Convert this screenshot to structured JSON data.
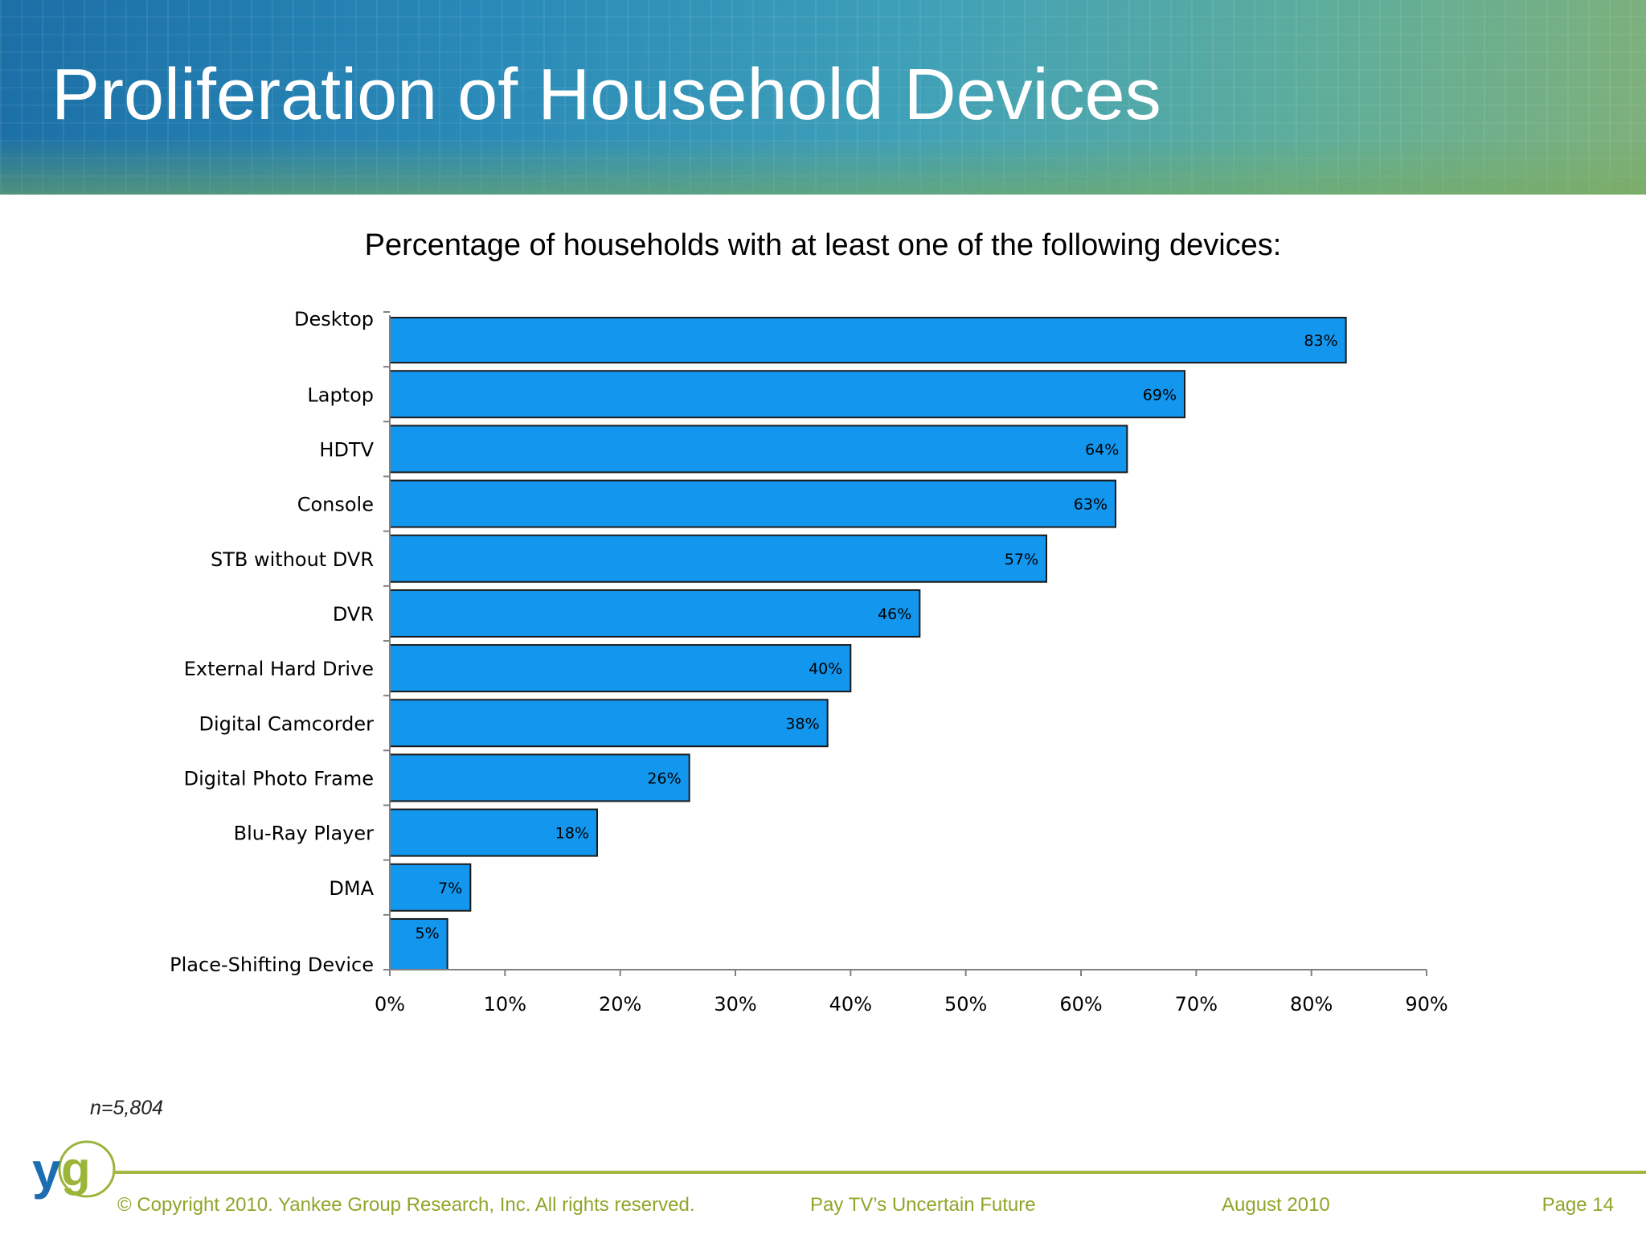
{
  "slide": {
    "title": "Proliferation of Household Devices",
    "chart_heading": "Percentage of households with at least one of the following devices:",
    "sample_note": "n=5,804"
  },
  "footer": {
    "logo_text": "yg",
    "copyright": "© Copyright 2010. Yankee Group Research, Inc.  All rights reserved.",
    "report": "Pay TV’s Uncertain Future",
    "date": "August 2010",
    "page": "Page 14"
  },
  "colors": {
    "bar_fill": "#1396ee",
    "bar_stroke": "#1a1a1a",
    "footer_accent": "#8fa62a",
    "logo_blue": "#1b6cb0",
    "logo_green": "#9ab53a"
  },
  "chart_data": {
    "type": "bar",
    "orientation": "horizontal",
    "categories": [
      "Desktop",
      "Laptop",
      "HDTV",
      "Console",
      "STB without DVR",
      "DVR",
      "External Hard Drive",
      "Digital Camcorder",
      "Digital Photo Frame",
      "Blu-Ray Player",
      "DMA",
      "Place-Shifting Device"
    ],
    "values": [
      83,
      69,
      64,
      63,
      57,
      46,
      40,
      38,
      26,
      18,
      7,
      5
    ],
    "data_labels": [
      "83%",
      "69%",
      "64%",
      "63%",
      "57%",
      "46%",
      "40%",
      "38%",
      "26%",
      "18%",
      "7%",
      "5%"
    ],
    "x_ticks": [
      0,
      10,
      20,
      30,
      40,
      50,
      60,
      70,
      80,
      90
    ],
    "x_tick_labels": [
      "0%",
      "10%",
      "20%",
      "30%",
      "40%",
      "50%",
      "60%",
      "70%",
      "80%",
      "90%"
    ],
    "xlim": [
      0,
      90
    ],
    "grid": false,
    "legend": "none"
  }
}
